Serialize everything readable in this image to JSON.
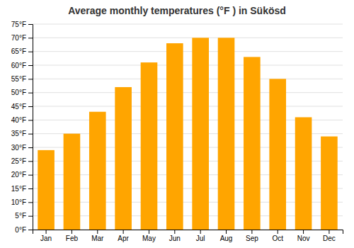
{
  "chart_data": {
    "type": "bar",
    "title": "Average monthly temperatures (°F ) in Sükösd",
    "categories": [
      "Jan",
      "Feb",
      "Mar",
      "Apr",
      "May",
      "Jun",
      "Jul",
      "Aug",
      "Sep",
      "Oct",
      "Nov",
      "Dec"
    ],
    "values": [
      29,
      35,
      43,
      52,
      61,
      68,
      70,
      70,
      63,
      55,
      41,
      34
    ],
    "color": "#FFA500",
    "ylim": [
      0,
      75
    ],
    "yticks": [
      {
        "value": 0,
        "label": "0°F"
      },
      {
        "value": 5,
        "label": "5°F"
      },
      {
        "value": 10,
        "label": "10°F"
      },
      {
        "value": 15,
        "label": "15°F"
      },
      {
        "value": 20,
        "label": "20°F"
      },
      {
        "value": 25,
        "label": "25°F"
      },
      {
        "value": 30,
        "label": "30°F"
      },
      {
        "value": 35,
        "label": "35°F"
      },
      {
        "value": 40,
        "label": "40°F"
      },
      {
        "value": 45,
        "label": "45°F"
      },
      {
        "value": 50,
        "label": "50°F"
      },
      {
        "value": 55,
        "label": "55°F"
      },
      {
        "value": 60,
        "label": "60°F"
      },
      {
        "value": 65,
        "label": "65°F"
      },
      {
        "value": 70,
        "label": "70°F"
      },
      {
        "value": 75,
        "label": "75°F"
      }
    ],
    "grid": true
  }
}
